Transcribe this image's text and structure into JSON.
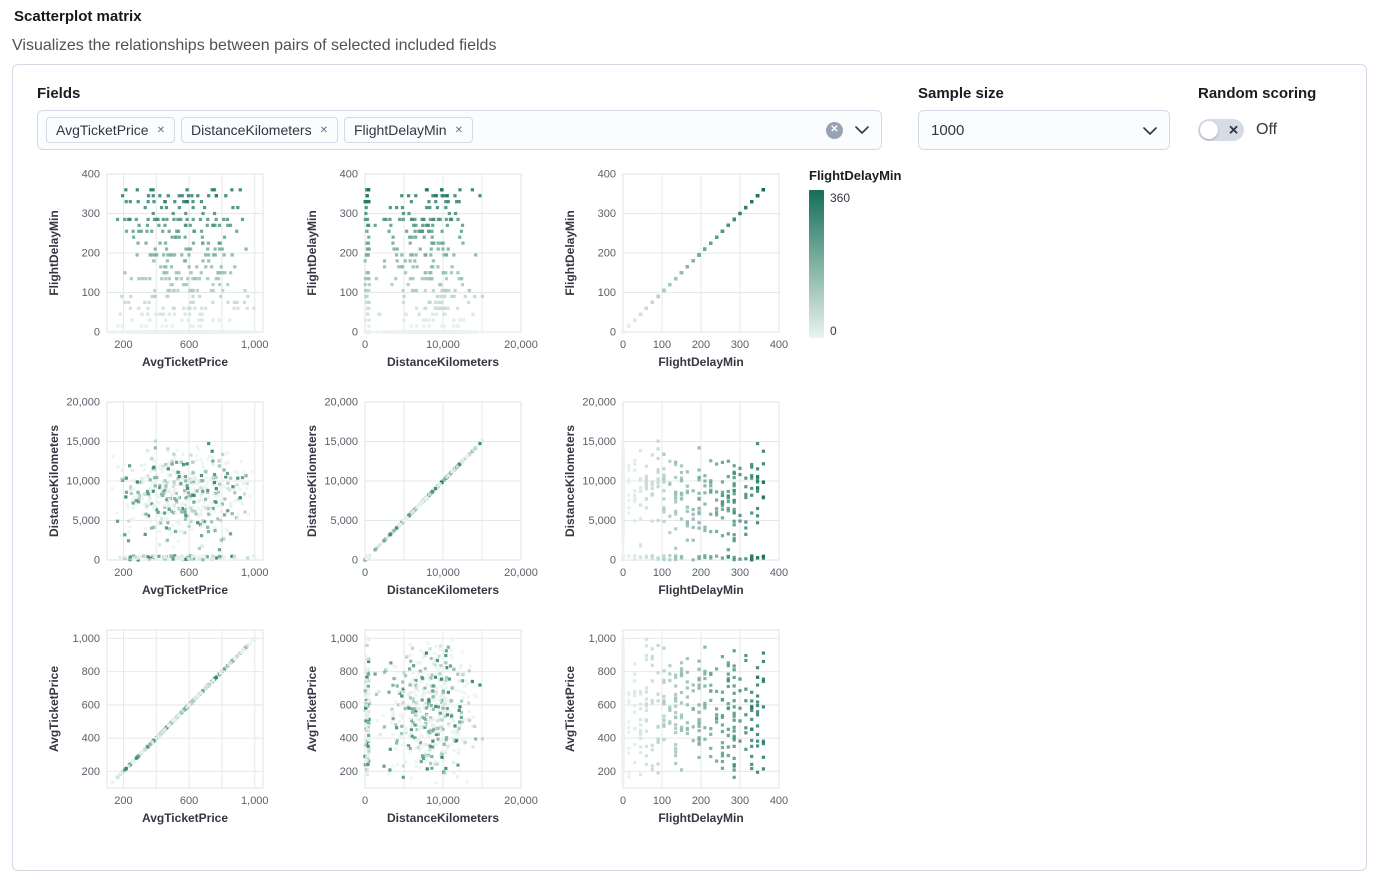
{
  "header": {
    "title": "Scatterplot matrix",
    "subtitle": "Visualizes the relationships between pairs of selected included fields"
  },
  "controls": {
    "fields_label": "Fields",
    "selected_fields": [
      "AvgTicketPrice",
      "DistanceKilometers",
      "FlightDelayMin"
    ],
    "sample_size_label": "Sample size",
    "sample_size_value": "1000",
    "random_scoring_label": "Random scoring",
    "random_scoring_state": "Off"
  },
  "icons": {
    "remove_field": "✕",
    "clear_selection": "✕",
    "chevron_down": "chevron-down",
    "switch_off": "✕"
  },
  "legend": {
    "title": "FlightDelayMin",
    "max_label": "360",
    "min_label": "0"
  },
  "chart_data": {
    "type": "scatter_matrix",
    "sample_size": 1000,
    "color_field": "FlightDelayMin",
    "color_scale": {
      "min": 0,
      "max": 360,
      "min_color": "#eaf3ef",
      "max_color": "#156f58"
    },
    "row_fields": [
      "FlightDelayMin",
      "DistanceKilometers",
      "AvgTicketPrice"
    ],
    "col_fields": [
      "AvgTicketPrice",
      "DistanceKilometers",
      "FlightDelayMin"
    ],
    "point_style": {
      "shape": "square",
      "size": 3.2,
      "opacity": 0.8
    },
    "grid": true,
    "fields": {
      "AvgTicketPrice": {
        "domain": [
          100,
          1050
        ],
        "ticks_x": [
          {
            "v": 200,
            "label": "200"
          },
          {
            "v": 400,
            "label": ""
          },
          {
            "v": 600,
            "label": "600"
          },
          {
            "v": 800,
            "label": ""
          },
          {
            "v": 1000,
            "label": "1,000"
          }
        ],
        "ticks_y": [
          {
            "v": 200,
            "label": "200"
          },
          {
            "v": 400,
            "label": "400"
          },
          {
            "v": 600,
            "label": "600"
          },
          {
            "v": 800,
            "label": "800"
          },
          {
            "v": 1000,
            "label": "1,000"
          }
        ]
      },
      "DistanceKilometers": {
        "domain": [
          0,
          20000
        ],
        "ticks_x": [
          {
            "v": 0,
            "label": "0"
          },
          {
            "v": 5000,
            "label": ""
          },
          {
            "v": 10000,
            "label": "10,000"
          },
          {
            "v": 15000,
            "label": ""
          },
          {
            "v": 20000,
            "label": "20,000"
          }
        ],
        "ticks_y": [
          {
            "v": 0,
            "label": "0"
          },
          {
            "v": 5000,
            "label": "5,000"
          },
          {
            "v": 10000,
            "label": "10,000"
          },
          {
            "v": 15000,
            "label": "15,000"
          },
          {
            "v": 20000,
            "label": "20,000"
          }
        ]
      },
      "FlightDelayMin": {
        "domain": [
          0,
          400
        ],
        "ticks_x": [
          {
            "v": 0,
            "label": "0"
          },
          {
            "v": 100,
            "label": "100"
          },
          {
            "v": 200,
            "label": "200"
          },
          {
            "v": 300,
            "label": "300"
          },
          {
            "v": 400,
            "label": "400"
          }
        ],
        "ticks_y": [
          {
            "v": 0,
            "label": "0"
          },
          {
            "v": 100,
            "label": "100"
          },
          {
            "v": 200,
            "label": "200"
          },
          {
            "v": 300,
            "label": "300"
          },
          {
            "v": 400,
            "label": "400"
          }
        ]
      }
    }
  }
}
